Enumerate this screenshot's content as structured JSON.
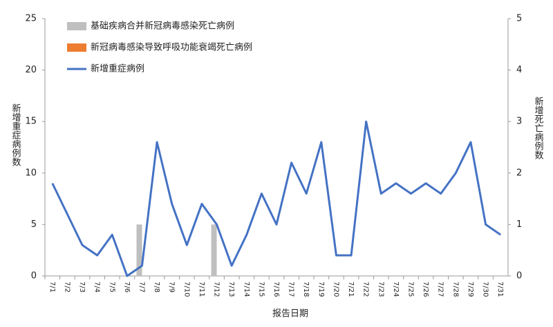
{
  "chart_data": {
    "type": "bar-line",
    "x_label": "报告日期",
    "y_label": "新增重症病例数",
    "y2_label": "新增死亡病例数",
    "categories": [
      "7/1",
      "7/2",
      "7/3",
      "7/4",
      "7/5",
      "7/6",
      "7/7",
      "7/8",
      "7/9",
      "7/10",
      "7/11",
      "7/12",
      "7/13",
      "7/14",
      "7/15",
      "7/16",
      "7/17",
      "7/18",
      "7/19",
      "7/20",
      "7/21",
      "7/22",
      "7/23",
      "7/24",
      "7/25",
      "7/26",
      "7/27",
      "7/28",
      "7/29",
      "7/30",
      "7/31"
    ],
    "series": [
      {
        "name": "基础疾病合并新冠病毒感染死亡病例",
        "type": "bar",
        "axis": "y2",
        "color": "#bfbfbf",
        "values": [
          0,
          0,
          0,
          0,
          0,
          0,
          1,
          0,
          0,
          0,
          0,
          1,
          0,
          0,
          0,
          0,
          0,
          0,
          0,
          0,
          0,
          0,
          0,
          0,
          0,
          0,
          0,
          0,
          0,
          0,
          0
        ]
      },
      {
        "name": "新冠病毒感染导致呼吸功能衰竭死亡病例",
        "type": "bar",
        "axis": "y2",
        "color": "#ed7d31",
        "values": [
          0,
          0,
          0,
          0,
          0,
          0,
          0,
          0,
          0,
          0,
          0,
          0,
          0,
          0,
          0,
          0,
          0,
          0,
          0,
          0,
          0,
          0,
          0,
          0,
          0,
          0,
          0,
          0,
          0,
          0,
          0
        ]
      },
      {
        "name": "新增重症病例",
        "type": "line",
        "axis": "y",
        "color": "#4472c4",
        "values": [
          9,
          6,
          3,
          2,
          4,
          0,
          1,
          13,
          7,
          3,
          7,
          5,
          1,
          4,
          8,
          5,
          11,
          8,
          13,
          2,
          2,
          15,
          8,
          9,
          8,
          9,
          8,
          10,
          13,
          5,
          4
        ]
      }
    ],
    "ylim": [
      0,
      25
    ],
    "yticks": [
      0,
      5,
      10,
      15,
      20,
      25
    ],
    "y2lim": [
      0,
      5
    ],
    "y2ticks": [
      0,
      1,
      2,
      3,
      4,
      5
    ],
    "legend": "top-left",
    "grid": false
  }
}
